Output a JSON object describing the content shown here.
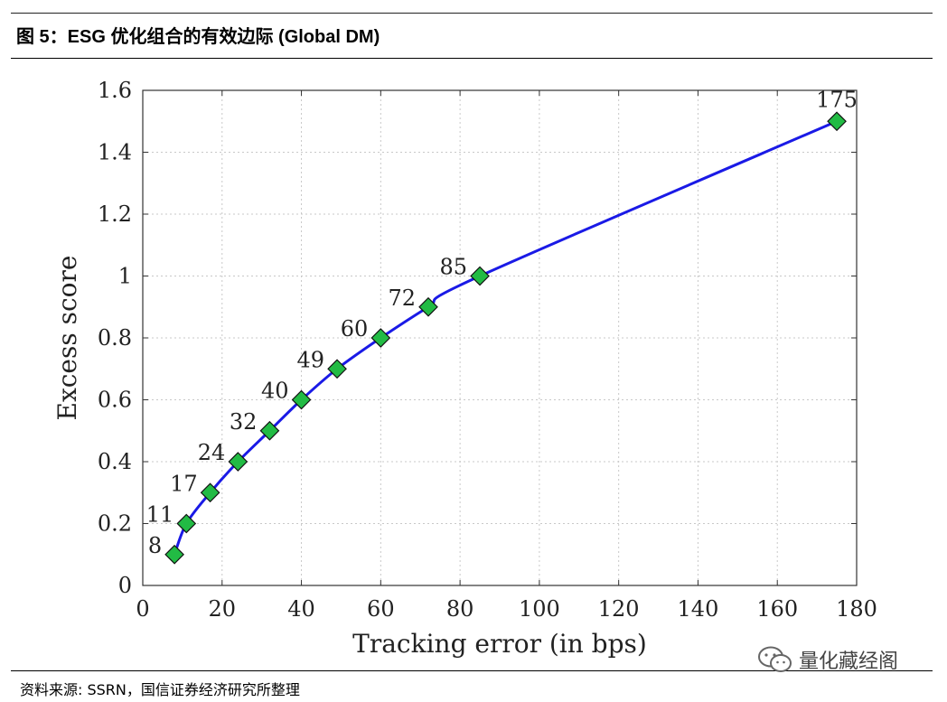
{
  "figure": {
    "title": "图 5：ESG 优化组合的有效边际 (Global DM)",
    "source": "资料来源: SSRN，国信证券经济研究所整理",
    "watermark": "量化藏经阁"
  },
  "chart_data": {
    "type": "line",
    "xlabel": "Tracking error (in bps)",
    "ylabel": "Excess score",
    "xlim": [
      0,
      180
    ],
    "ylim": [
      0,
      1.6
    ],
    "xticks": [
      0,
      20,
      40,
      60,
      80,
      100,
      120,
      140,
      160,
      180
    ],
    "yticks": [
      0,
      0.2,
      0.4,
      0.6,
      0.8,
      1,
      1.2,
      1.4,
      1.6
    ],
    "xtick_labels": [
      "0",
      "20",
      "40",
      "60",
      "80",
      "100",
      "120",
      "140",
      "160",
      "180"
    ],
    "ytick_labels": [
      "0",
      "0.2",
      "0.4",
      "0.6",
      "0.8",
      "1",
      "1.2",
      "1.4",
      "1.6"
    ],
    "grid": true,
    "series": [
      {
        "x": [
          8,
          11,
          17,
          24,
          32,
          40,
          49,
          60,
          72,
          85,
          175
        ],
        "y": [
          0.1,
          0.2,
          0.3,
          0.4,
          0.5,
          0.6,
          0.7,
          0.8,
          0.9,
          1.0,
          1.5
        ],
        "point_labels": [
          "8",
          "11",
          "17",
          "24",
          "32",
          "40",
          "49",
          "60",
          "72",
          "85",
          "175"
        ],
        "line_color": "#1a1ae6",
        "marker": "diamond",
        "marker_color": "#22bb44"
      }
    ]
  }
}
